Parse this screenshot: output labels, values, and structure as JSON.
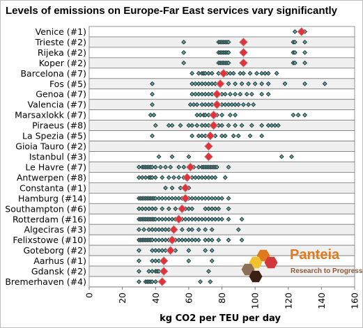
{
  "chart_data": {
    "type": "scatter",
    "title": "Levels of emissions on Europe-Far East services vary significantly",
    "xlabel": "kg CO2 per TEU per day",
    "xlim": [
      0,
      160
    ],
    "xticks": [
      0,
      20,
      40,
      60,
      80,
      100,
      120,
      140,
      160
    ],
    "grid": "horizontal-bands",
    "categories": [
      "Venice (#1)",
      "Trieste (#2)",
      "Rijeka (#2)",
      "Koper (#2)",
      "Barcelona (#7)",
      "Fos (#5)",
      "Genoa (#7)",
      "Valencia (#7)",
      "Marsaxlokk (#7)",
      "Piraeus (#8)",
      "La Spezia (#5)",
      "Gioia Tauro (#2)",
      "Istanbul (#3)",
      "Le Havre (#7)",
      "Antwerpen (#8)",
      "Constanta (#1)",
      "Hamburg (#14)",
      "Southampton (#6)",
      "Rotterdam (#16)",
      "Algeciras (#3)",
      "Felixstowe (#10)",
      "Goteborg (#2)",
      "Aarhus (#1)",
      "Gdansk (#2)",
      "Bremerhaven (#4)"
    ],
    "series": [
      {
        "marker": "diamond-small",
        "color": "#5fa8a6",
        "points": [
          [
            [
              124,
              130
            ]
          ],
          [
            [
              57,
              78,
              79,
              80,
              81,
              82,
              83,
              84,
              94,
              123,
              124,
              130
            ]
          ],
          [
            [
              57,
              78,
              79,
              80,
              81,
              82,
              83,
              84,
              94,
              123,
              124,
              130
            ]
          ],
          [
            [
              57,
              78,
              79,
              80,
              81,
              82,
              83,
              84,
              94,
              123,
              124,
              130
            ]
          ],
          [
            [
              62,
              66,
              68,
              69,
              70,
              72,
              74,
              78,
              83,
              85,
              87,
              91,
              93,
              97,
              101,
              104,
              106,
              108,
              113
            ]
          ],
          [
            [
              38,
              62,
              64,
              66,
              68,
              70,
              72,
              74,
              76,
              78,
              80,
              84,
              88,
              92,
              96,
              100,
              104,
              108,
              118,
              130,
              142
            ]
          ],
          [
            [
              38,
              62,
              64,
              66,
              68,
              70,
              72,
              74,
              76,
              78,
              80,
              82,
              85,
              88,
              91,
              95,
              98,
              104,
              108
            ]
          ],
          [
            [
              38,
              61,
              63,
              65,
              68,
              70,
              72,
              74,
              76,
              78,
              80,
              82,
              84,
              86,
              88,
              90,
              93,
              96,
              99
            ]
          ],
          [
            [
              37,
              39,
              65,
              67,
              69,
              70,
              72,
              74,
              75,
              77,
              80,
              85,
              88,
              123,
              126,
              130
            ]
          ],
          [
            [
              40,
              48,
              50,
              55,
              60,
              62,
              65,
              68,
              70,
              72,
              74,
              76,
              78,
              80,
              84,
              88,
              92,
              98,
              104,
              108,
              110,
              112,
              114
            ]
          ],
          [
            [
              38,
              62,
              66,
              68,
              70,
              72,
              74,
              76,
              80,
              82,
              87,
              90,
              97,
              104
            ]
          ],
          [
            [
              71,
              73
            ]
          ],
          [
            [
              42,
              50,
              60,
              71,
              73,
              116,
              122
            ]
          ],
          [
            [
              30,
              32,
              33,
              34,
              35,
              36,
              37,
              38,
              40,
              43,
              46,
              49,
              54,
              57,
              60,
              63,
              66,
              68,
              69,
              70,
              71,
              72,
              73,
              74,
              75,
              76,
              77,
              84
            ]
          ],
          [
            [
              30,
              32,
              34,
              36,
              37,
              38,
              40,
              44,
              48,
              51,
              54,
              57,
              59,
              62,
              64,
              66,
              68,
              70,
              72,
              74,
              76,
              82
            ]
          ],
          [
            [
              46,
              50,
              55,
              58,
              60
            ]
          ],
          [
            [
              30,
              31,
              32,
              33,
              34,
              35,
              36,
              37,
              38,
              39,
              40,
              42,
              44,
              46,
              48,
              50,
              52,
              54,
              56,
              58,
              60,
              62,
              64,
              66,
              68,
              70,
              72,
              74,
              76,
              78,
              80,
              84
            ]
          ],
          [
            [
              30,
              32,
              34,
              36,
              38,
              40,
              44,
              48,
              52,
              56,
              58,
              60,
              62,
              70,
              72,
              74,
              76,
              78,
              84
            ]
          ],
          [
            [
              30,
              31,
              32,
              33,
              34,
              35,
              36,
              37,
              38,
              39,
              40,
              42,
              44,
              46,
              48,
              50,
              52,
              54,
              56,
              58,
              60,
              62,
              64,
              66,
              68,
              70,
              72,
              74,
              76,
              78,
              80,
              84,
              92
            ]
          ],
          [
            [
              30,
              33,
              36,
              38,
              40,
              42,
              44,
              46,
              48,
              52,
              56,
              60,
              62,
              66,
              70,
              74,
              90
            ]
          ],
          [
            [
              30,
              31,
              32,
              33,
              34,
              35,
              36,
              37,
              38,
              40,
              42,
              44,
              46,
              48,
              50,
              52,
              54,
              56,
              58,
              60,
              62,
              64,
              66,
              70,
              72,
              74,
              78,
              84,
              92
            ]
          ],
          [
            [
              30,
              38,
              40,
              42,
              44,
              46,
              48,
              50,
              52,
              60,
              70,
              74
            ]
          ],
          [
            [
              30,
              38,
              40,
              42,
              46,
              60,
              74
            ]
          ],
          [
            [
              30,
              36,
              38,
              40,
              41,
              42,
              44,
              46,
              72
            ]
          ],
          [
            [
              30,
              34,
              35,
              36,
              37,
              38,
              40,
              43,
              45,
              67,
              73
            ]
          ]
        ]
      },
      {
        "name": "average",
        "marker": "diamond-large",
        "color": "#e2333c",
        "values": [
          128,
          93,
          93,
          93,
          81,
          79,
          77,
          77,
          75,
          75,
          73,
          72,
          72,
          61,
          59,
          58,
          58,
          56,
          54,
          51,
          50,
          49,
          45,
          45,
          44
        ]
      }
    ]
  },
  "logo": {
    "name": "Panteia",
    "tagline": "Research to Progress",
    "hex_colors": [
      "#e07a1f",
      "#f2c12e",
      "#d2383a",
      "#8d6e57",
      "#3a1f12"
    ]
  }
}
